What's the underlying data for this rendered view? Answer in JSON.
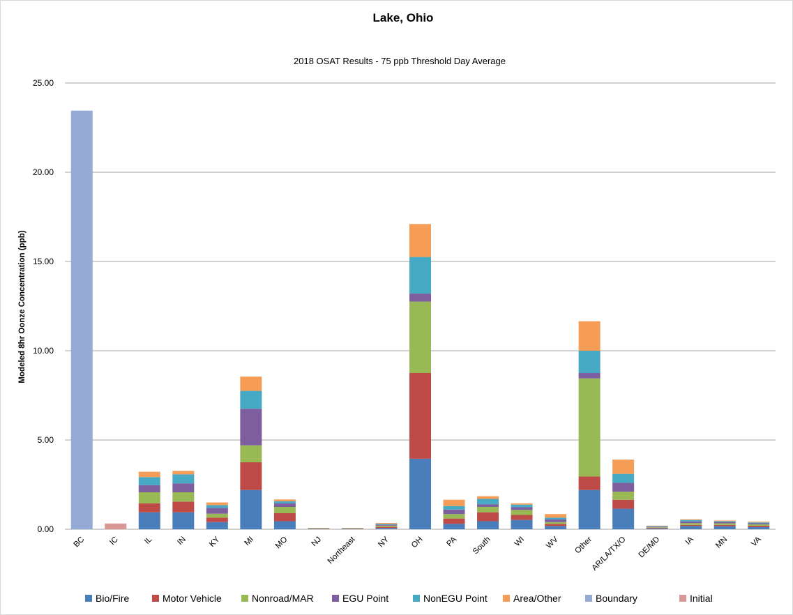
{
  "chart_data": {
    "type": "bar",
    "stacked": true,
    "title": "Lake, Ohio",
    "subtitle": "2018 OSAT Results - 75 ppb Threshold Day Average",
    "ylabel": "Modeled 8hr Oonze Concentration (ppb)",
    "xlabel": "",
    "ylim": [
      0,
      25
    ],
    "yticks": [
      "0.00",
      "5.00",
      "10.00",
      "15.00",
      "20.00",
      "25.00"
    ],
    "grid": true,
    "legend_position": "bottom",
    "categories": [
      "BC",
      "IC",
      "IL",
      "IN",
      "KY",
      "MI",
      "MO",
      "NJ",
      "Northeast",
      "NY",
      "OH",
      "PA",
      "South",
      "WI",
      "WV",
      "Other",
      "AR/LA/TX/O",
      "DE/MD",
      "IA",
      "MN",
      "VA"
    ],
    "series": [
      {
        "name": "Bio/Fire",
        "color": "#4a7ebb",
        "values": [
          0,
          0,
          0.95,
          0.95,
          0.4,
          2.2,
          0.45,
          0.02,
          0.02,
          0.07,
          3.95,
          0.3,
          0.45,
          0.52,
          0.18,
          2.2,
          1.15,
          0.05,
          0.18,
          0.17,
          0.12
        ]
      },
      {
        "name": "Motor Vehicle",
        "color": "#be4b48",
        "values": [
          0,
          0,
          0.5,
          0.6,
          0.25,
          1.55,
          0.45,
          0.01,
          0.01,
          0.06,
          4.8,
          0.3,
          0.5,
          0.28,
          0.12,
          0.75,
          0.5,
          0.04,
          0.06,
          0.07,
          0.08
        ]
      },
      {
        "name": "Nonroad/MAR",
        "color": "#98b954",
        "values": [
          0,
          0,
          0.62,
          0.52,
          0.22,
          0.95,
          0.35,
          0.01,
          0.01,
          0.07,
          4.0,
          0.25,
          0.3,
          0.28,
          0.1,
          5.5,
          0.45,
          0.03,
          0.1,
          0.09,
          0.07
        ]
      },
      {
        "name": "EGU Point",
        "color": "#7d5fa0",
        "values": [
          0,
          0,
          0.4,
          0.5,
          0.33,
          2.05,
          0.2,
          0.01,
          0.01,
          0.05,
          0.45,
          0.25,
          0.15,
          0.15,
          0.15,
          0.3,
          0.5,
          0.03,
          0.1,
          0.07,
          0.06
        ]
      },
      {
        "name": "NonEGU Point",
        "color": "#46aac5",
        "values": [
          0,
          0,
          0.45,
          0.5,
          0.15,
          1.0,
          0.12,
          0.01,
          0.01,
          0.05,
          2.05,
          0.2,
          0.3,
          0.15,
          0.1,
          1.25,
          0.5,
          0.03,
          0.08,
          0.05,
          0.05
        ]
      },
      {
        "name": "Area/Other",
        "color": "#f59d56",
        "values": [
          0,
          0,
          0.3,
          0.2,
          0.15,
          0.8,
          0.1,
          0.01,
          0.01,
          0.05,
          1.85,
          0.35,
          0.15,
          0.07,
          0.2,
          1.65,
          0.8,
          0.02,
          0.04,
          0.04,
          0.04
        ]
      },
      {
        "name": "Boundary",
        "color": "#95abd5",
        "values": [
          23.45,
          0,
          0,
          0,
          0,
          0,
          0,
          0,
          0,
          0,
          0,
          0,
          0,
          0,
          0,
          0,
          0,
          0,
          0,
          0,
          0
        ]
      },
      {
        "name": "Initial",
        "color": "#d99795",
        "values": [
          0,
          0.32,
          0,
          0,
          0,
          0,
          0,
          0,
          0,
          0,
          0,
          0,
          0,
          0,
          0,
          0,
          0,
          0,
          0,
          0,
          0
        ]
      }
    ]
  }
}
